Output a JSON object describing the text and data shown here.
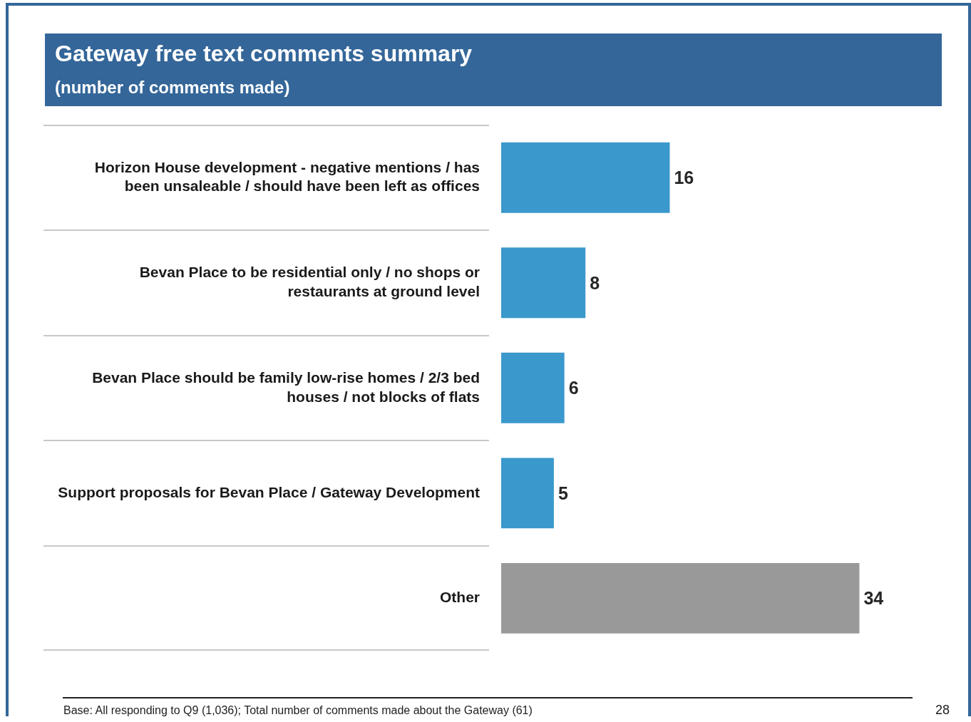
{
  "chart_data": {
    "type": "bar",
    "orientation": "horizontal",
    "title": "Gateway free text comments summary",
    "subtitle": "(number of comments made)",
    "categories": [
      "Horizon House development - negative mentions / has been unsaleable / should have been left as offices",
      "Bevan Place to be residential only / no shops or restaurants at ground level",
      "Bevan Place should be family low-rise homes / 2/3 bed houses / not blocks of flats",
      "Support proposals for Bevan Place / Gateway Development",
      "Other"
    ],
    "values": [
      16,
      8,
      6,
      5,
      34
    ],
    "colors": [
      "#3a98cc",
      "#3a98cc",
      "#3a98cc",
      "#3a98cc",
      "#999999"
    ],
    "data_labels": true,
    "legend": false,
    "tick_labels": "y",
    "annotations": [
      "Base: All responding to Q9 (1,036); Total number of comments made about the Gateway (61)",
      "28"
    ]
  }
}
